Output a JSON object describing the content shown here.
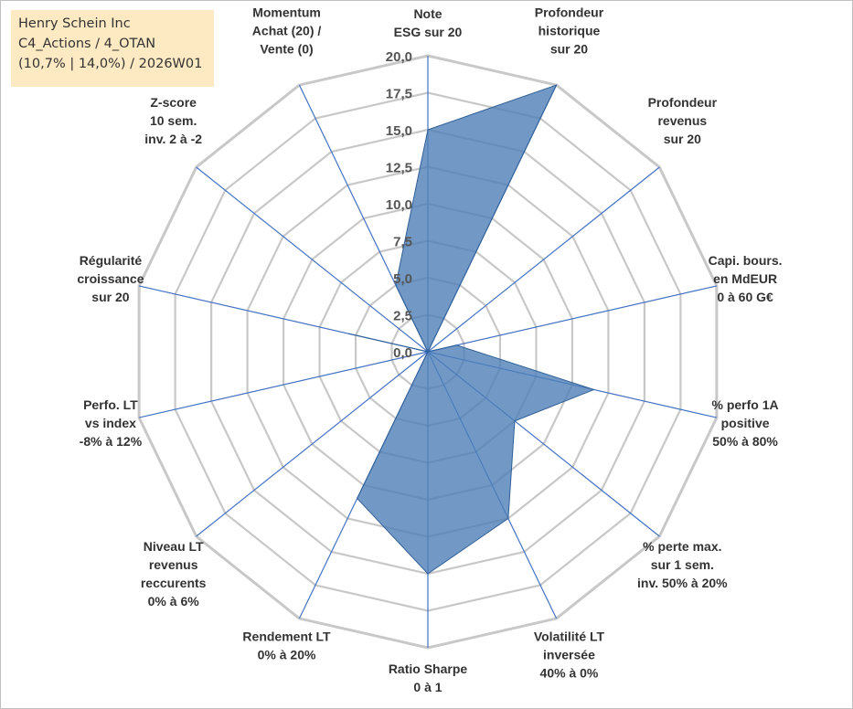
{
  "info_box": {
    "line1": "Henry Schein Inc",
    "line2": "C4_Actions / 4_OTAN",
    "line3": "(10,7% | 14,0%) / 2026W01"
  },
  "colors": {
    "series_fill": "#4f7fb7",
    "series_stroke": "#2f5f97",
    "grid": "#c8c8c8",
    "spoke": "#4472c4",
    "info_bg": "#fde9c2"
  },
  "chart_data": {
    "type": "radar",
    "title": "",
    "rmin": 0,
    "rmax": 20,
    "ticks": [
      "0,0",
      "2,5",
      "5,0",
      "7,5",
      "10,0",
      "12,5",
      "15,0",
      "17,5",
      "20,0"
    ],
    "grid": true,
    "legend": "none",
    "categories": [
      [
        "Note",
        "ESG sur 20"
      ],
      [
        "Profondeur",
        "historique",
        "sur 20"
      ],
      [
        "Profondeur",
        "revenus",
        "sur 20"
      ],
      [
        "Capi. bours.",
        "en MdEUR",
        "0 à 60 G€"
      ],
      [
        "% perfo 1A",
        "positive",
        "50% à 80%"
      ],
      [
        "% perte max.",
        "sur 1 sem.",
        "inv. 50% à 20%"
      ],
      [
        "Volatilité LT",
        "inversée",
        "40% à 0%"
      ],
      [
        "Ratio Sharpe",
        "0 à 1"
      ],
      [
        "Rendement LT",
        "0% à 20%"
      ],
      [
        "Niveau LT",
        "revenus",
        "reccurents",
        "0% à 6%"
      ],
      [
        "Perfo. LT",
        "vs index",
        "-8% à 12%"
      ],
      [
        "Régularité",
        "croissance",
        "sur 20"
      ],
      [
        "Z-score",
        "10 sem.",
        "inv. 2 à -2"
      ],
      [
        "Momentum",
        "Achat (20) /",
        "Vente (0)"
      ]
    ],
    "series": [
      {
        "values": [
          15.0,
          20.0,
          0.0,
          2.0,
          11.5,
          7.5,
          12.5,
          15.0,
          11.0,
          0.0,
          0.0,
          5.5,
          0.0,
          5.0
        ]
      }
    ]
  }
}
